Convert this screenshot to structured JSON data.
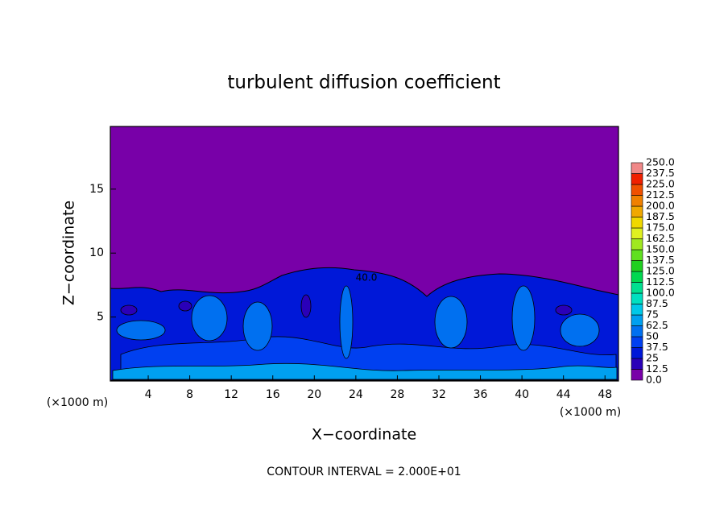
{
  "chart_data": {
    "type": "contour",
    "title": "turbulent diffusion coefficient",
    "xlabel": "X−coordinate",
    "ylabel": "Z−coordinate",
    "x_unit": "(×1000 m)",
    "x_unit_right": "(×1000 m)",
    "footer": "CONTOUR INTERVAL = 2.000E+01",
    "annotations": [
      "40.0"
    ],
    "xlim": [
      0.35,
      49.3
    ],
    "xticks": [
      4,
      8,
      12,
      16,
      20,
      24,
      28,
      32,
      36,
      40,
      44,
      48
    ],
    "ylim": [
      0,
      19.9
    ],
    "yticks": [
      5,
      10,
      15
    ],
    "colorbar": {
      "levels": [
        {
          "value": 0,
          "label": "0.0"
        },
        12.5,
        25,
        37.5,
        50,
        62.5,
        75,
        87.5,
        {
          "value": 100,
          "label": "100.0"
        },
        112.5,
        {
          "value": 125,
          "label": "125.0"
        },
        137.5,
        {
          "value": 150,
          "label": "150.0"
        },
        162.5,
        {
          "value": 175,
          "label": "175.0"
        },
        187.5,
        {
          "value": 200,
          "label": "200.0"
        },
        212.5,
        {
          "value": 225,
          "label": "225.0"
        },
        237.5,
        {
          "value": 250,
          "label": "250.0"
        }
      ],
      "colors": [
        "#7800a8",
        "#2a00b8",
        "#0018d8",
        "#0040f0",
        "#0070f0",
        "#00a0f0",
        "#00c8e8",
        "#00e0c0",
        "#00e090",
        "#00d850",
        "#20d020",
        "#60e020",
        "#a0e820",
        "#e0f020",
        "#f0d800",
        "#f0a800",
        "#f08000",
        "#f05000",
        "#f02000",
        "#f08888"
      ]
    }
  }
}
